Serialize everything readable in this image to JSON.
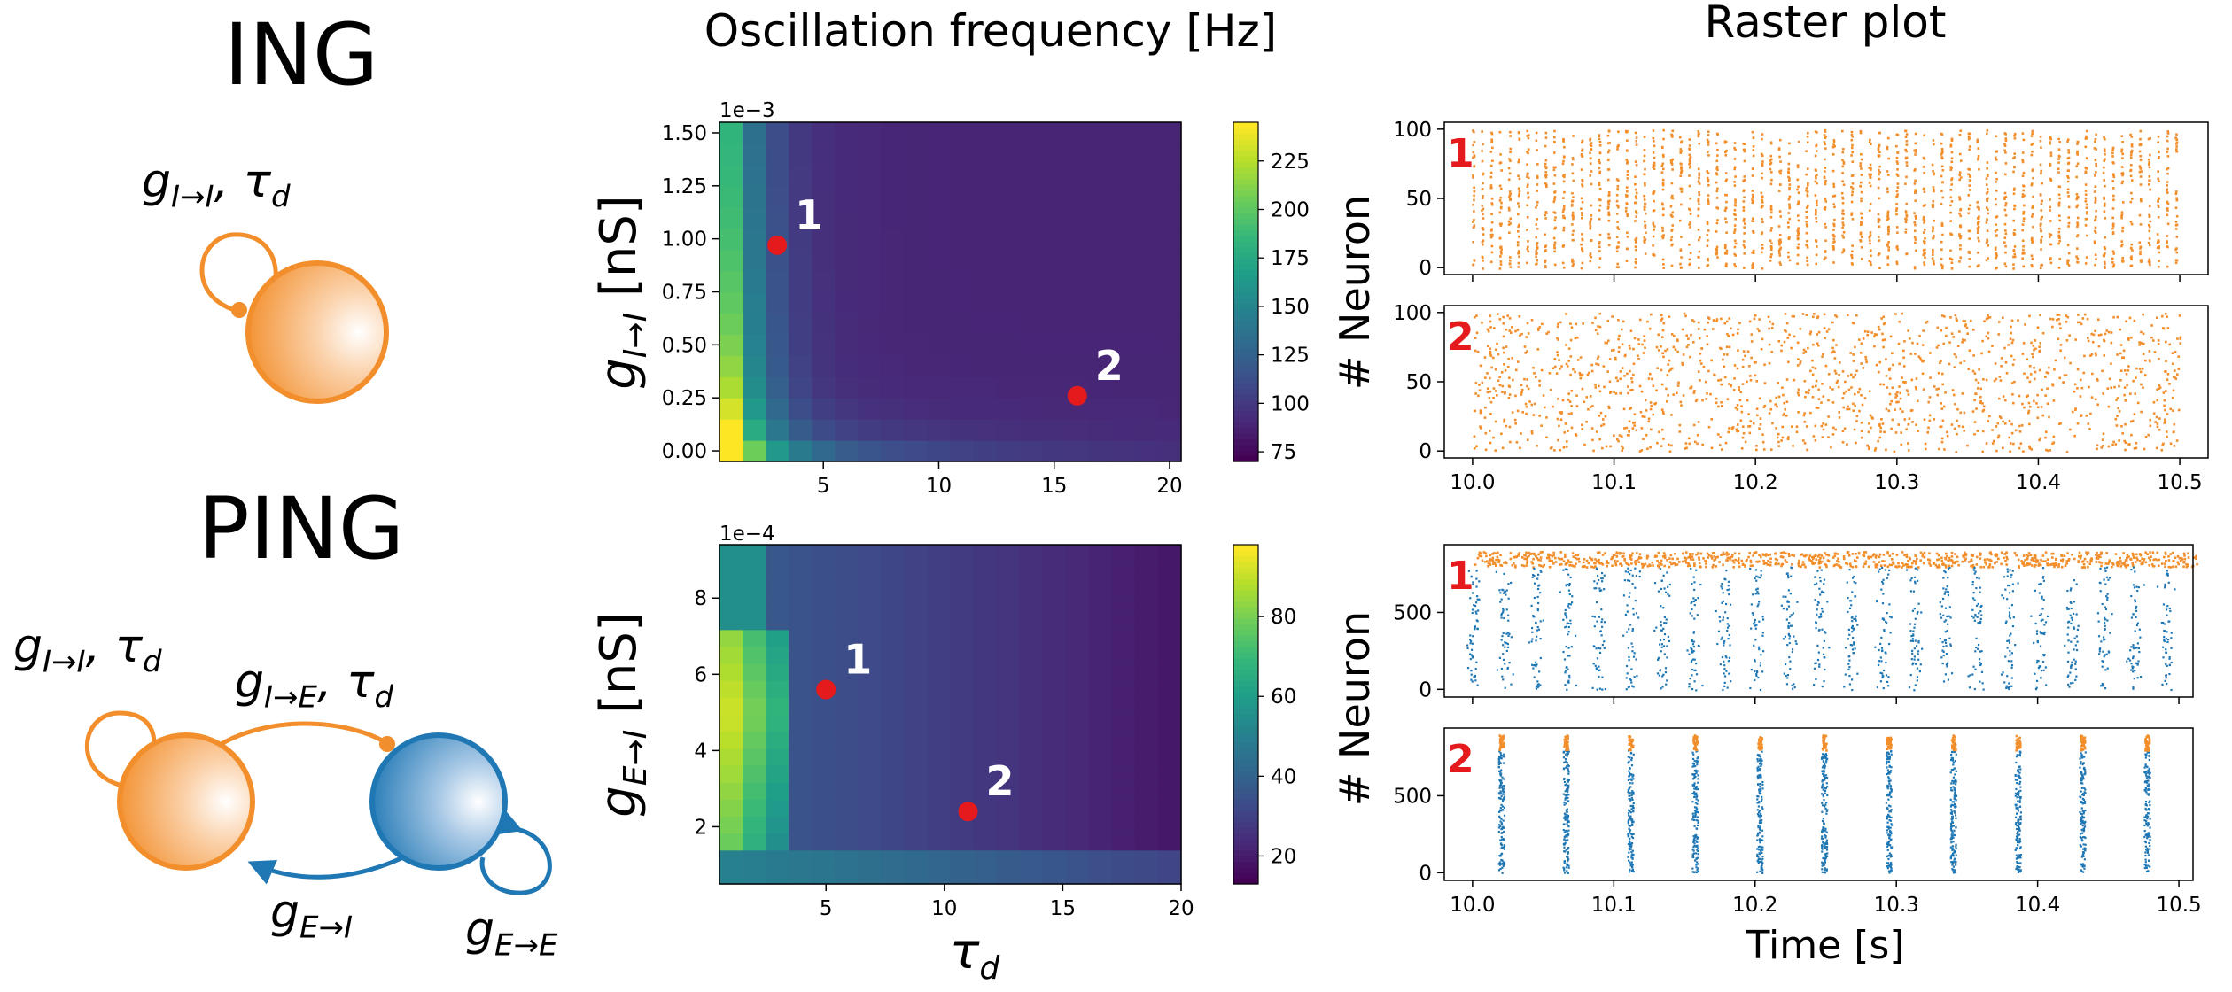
{
  "network": {
    "ing": {
      "title": "ING",
      "label_ii": "g<sub>I→I</sub>, τ<sub>d</sub>"
    },
    "ping": {
      "title": "PING",
      "label_ii": "g<sub>I→I</sub>, τ<sub>d</sub>",
      "label_ie": "g<sub>I→E</sub>, τ<sub>d</sub>",
      "label_ei": "g<sub>E→I</sub>",
      "label_ee": "g<sub>E→E</sub>"
    },
    "colors": {
      "inhibitory": "#f28e2b",
      "excitatory": "#1f77b4"
    }
  },
  "chart_data": [
    {
      "type": "heatmap",
      "panel": "ING",
      "title": "Oscillation frequency [Hz]",
      "xlabel": "τ_d",
      "ylabel": "g_{I→I} [nS]",
      "y_scale_label": "1e−3",
      "xlim": [
        0.5,
        20.5
      ],
      "ylim": [
        -0.05,
        1.55
      ],
      "xticks": [
        5,
        10,
        15,
        20
      ],
      "yticks": [
        "0.00",
        "0.25",
        "0.50",
        "0.75",
        "1.00",
        "1.25",
        "1.50"
      ],
      "x_range": [
        1,
        20
      ],
      "y_range": [
        0.0,
        1.5
      ],
      "colorbar": {
        "min": 70,
        "max": 245,
        "ticks": [
          75,
          100,
          125,
          150,
          175,
          200,
          225
        ]
      },
      "colormap": "viridis",
      "markers": [
        {
          "label": "1",
          "x": 3,
          "y": 0.97
        },
        {
          "label": "2",
          "x": 16,
          "y": 0.26
        }
      ]
    },
    {
      "type": "heatmap",
      "panel": "PING",
      "xlabel": "τ_d",
      "ylabel": "g_{E→I} [nS]",
      "y_scale_label": "1e−4",
      "xlim": [
        0.5,
        20
      ],
      "ylim": [
        0.5,
        9.4
      ],
      "xticks": [
        5,
        10,
        15,
        20
      ],
      "yticks": [
        2,
        4,
        6,
        8
      ],
      "x_range": [
        1,
        20
      ],
      "y_range": [
        0.5,
        9.3
      ],
      "colorbar": {
        "min": 13,
        "max": 98,
        "ticks": [
          20,
          40,
          60,
          80
        ]
      },
      "colormap": "viridis",
      "markers": [
        {
          "label": "1",
          "x": 5,
          "y": 5.6
        },
        {
          "label": "2",
          "x": 11,
          "y": 2.4
        }
      ]
    },
    {
      "type": "scatter",
      "panel": "Raster ING",
      "title": "Raster plot",
      "xlabel": "Time [s]",
      "ylabel": "# Neuron",
      "xlim": [
        9.98,
        10.52
      ],
      "xticks": [
        "10.0",
        "10.1",
        "10.2",
        "10.3",
        "10.4",
        "10.5"
      ],
      "rows": [
        {
          "label": "1",
          "ylim": [
            -5,
            105
          ],
          "yticks": [
            0,
            50,
            100
          ],
          "inh_neurons": 100,
          "exc_neurons": 0,
          "t_start": 10.0,
          "t_end": 10.5,
          "cycle_period_s": 0.00637,
          "synchronous": true
        },
        {
          "label": "2",
          "ylim": [
            -5,
            105
          ],
          "yticks": [
            0,
            50,
            100
          ],
          "inh_neurons": 100,
          "exc_neurons": 0,
          "t_start": 10.0,
          "t_end": 10.5,
          "synchronous": false
        }
      ]
    },
    {
      "type": "scatter",
      "panel": "Raster PING",
      "xlabel": "Time [s]",
      "ylabel": "# Neuron",
      "xlim": [
        9.98,
        10.51
      ],
      "xticks": [
        "10.0",
        "10.1",
        "10.2",
        "10.3",
        "10.4",
        "10.5"
      ],
      "rows": [
        {
          "label": "1",
          "ylim": [
            -50,
            940
          ],
          "yticks": [
            0,
            500
          ],
          "exc_neurons": 800,
          "inh_neurons": 100,
          "t_start": 10.0,
          "t_end": 10.5,
          "cycle_period_s": 0.0223,
          "synchronous": true
        },
        {
          "label": "2",
          "ylim": [
            -50,
            940
          ],
          "yticks": [
            0,
            500
          ],
          "exc_neurons": 800,
          "inh_neurons": 100,
          "t_start": 10.02,
          "t_end": 10.49,
          "cycle_period_s": 0.0457,
          "synchronous": true
        }
      ]
    }
  ]
}
